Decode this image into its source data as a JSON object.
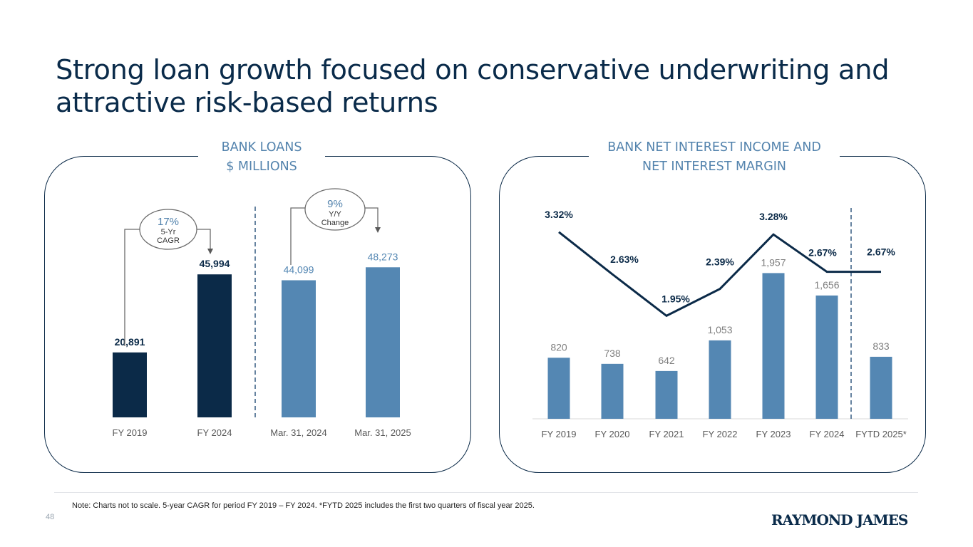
{
  "page": {
    "title_line1": "Strong loan growth focused on conservative underwriting and",
    "title_line2": "attractive risk-based returns",
    "footnote": "Note: Charts not to scale. 5-year CAGR for period FY 2019 – FY 2024. *FYTD 2025 includes the first two quarters of fiscal year 2025.",
    "page_number": "48",
    "logo_text": "RAYMOND JAMES"
  },
  "colors": {
    "navy": "#0b2a48",
    "steel_blue": "#5487b3",
    "heading_blue": "#5383ad",
    "axis_gray": "#595959"
  },
  "left_panel": {
    "heading_line1": "BANK LOANS",
    "heading_line2": "$ MILLIONS",
    "cagr_callout": {
      "value": "17%",
      "line1": "5-Yr",
      "line2": "CAGR"
    },
    "yoy_callout": {
      "value": "9%",
      "line1": "Y/Y",
      "line2": "Change"
    }
  },
  "right_panel": {
    "heading_line1": "BANK NET INTEREST INCOME AND",
    "heading_line2": "NET INTEREST MARGIN"
  },
  "chart_data": [
    {
      "type": "bar",
      "title": "BANK LOANS $ MILLIONS",
      "categories": [
        "FY 2019",
        "FY 2024",
        "Mar. 31, 2024",
        "Mar. 31, 2025"
      ],
      "values": [
        20891,
        45994,
        44099,
        48273
      ],
      "value_labels": [
        "20,891",
        "45,994",
        "44,099",
        "48,273"
      ],
      "bar_colors": [
        "#0b2a48",
        "#0b2a48",
        "#5487b3",
        "#5487b3"
      ],
      "ylim": [
        0,
        52000
      ],
      "xlabel": "",
      "ylabel": "",
      "grid": false
    },
    {
      "type": "bar",
      "title": "BANK NET INTEREST INCOME AND NET INTEREST MARGIN",
      "categories": [
        "FY 2019",
        "FY 2020",
        "FY 2021",
        "FY 2022",
        "FY 2023",
        "FY 2024",
        "FYTD 2025*"
      ],
      "series": [
        {
          "name": "Net interest income",
          "type": "bar",
          "values": [
            820,
            738,
            642,
            1053,
            1957,
            1656,
            833
          ],
          "labels": [
            "820",
            "738",
            "642",
            "1,053",
            "1,957",
            "1,656",
            "833"
          ]
        },
        {
          "name": "Net interest margin",
          "type": "line",
          "values": [
            3.32,
            2.63,
            1.95,
            2.39,
            3.28,
            2.67,
            2.67
          ],
          "labels": [
            "3.32%",
            "2.63%",
            "1.95%",
            "2.39%",
            "3.28%",
            "2.67%",
            "2.67%"
          ]
        }
      ],
      "ylim": [
        0,
        2200
      ],
      "y2lim": [
        0.3,
        3.62
      ],
      "xlabel": "",
      "ylabel": "",
      "grid": false
    }
  ]
}
